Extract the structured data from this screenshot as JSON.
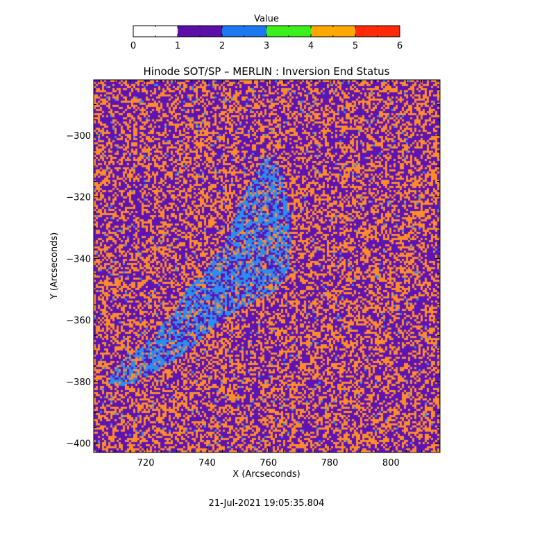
{
  "colorbar": {
    "title": "Value",
    "ticks": [
      "0",
      "1",
      "2",
      "3",
      "4",
      "5",
      "6"
    ],
    "range": [
      0,
      6
    ],
    "bins": [
      {
        "from": 0,
        "to": 1,
        "color": "#ffffff"
      },
      {
        "from": 1,
        "to": 2,
        "color": "#5b0ea8"
      },
      {
        "from": 2,
        "to": 3,
        "color": "#1c78f0"
      },
      {
        "from": 3,
        "to": 4,
        "color": "#3cf01c"
      },
      {
        "from": 4,
        "to": 5,
        "color": "#ffa800"
      },
      {
        "from": 5,
        "to": 6,
        "color": "#ff2a08"
      }
    ]
  },
  "chart_data": {
    "type": "heatmap",
    "title": "Hinode SOT/SP – MERLIN : Inversion End Status",
    "xlabel": "X (Arcseconds)",
    "ylabel": "Y (Arcseconds)",
    "xlim": [
      703,
      816
    ],
    "ylim": [
      -403,
      -282
    ],
    "x_ticks": [
      720,
      740,
      760,
      780,
      800
    ],
    "y_ticks": [
      -300,
      -320,
      -340,
      -360,
      -380,
      -400
    ],
    "values_present": [
      {
        "value": 1,
        "label": "1–2",
        "color": "#5e14b4",
        "share": "majority background"
      },
      {
        "value": 4,
        "label": "4–5",
        "color": "#ff8c28",
        "share": "scattered across field"
      },
      {
        "value": 2,
        "label": "2–3",
        "color": "#2c8cf0",
        "share": "clustered in central diagonal region"
      }
    ],
    "blue_region_outline": [
      [
        706,
        -380
      ],
      [
        712,
        -373
      ],
      [
        720,
        -367
      ],
      [
        728,
        -358
      ],
      [
        733,
        -350
      ],
      [
        740,
        -343
      ],
      [
        746,
        -333
      ],
      [
        750,
        -322
      ],
      [
        755,
        -313
      ],
      [
        759,
        -305
      ],
      [
        764,
        -312
      ],
      [
        766,
        -322
      ],
      [
        767,
        -334
      ],
      [
        766,
        -345
      ],
      [
        760,
        -352
      ],
      [
        752,
        -355
      ],
      [
        744,
        -360
      ],
      [
        738,
        -366
      ],
      [
        730,
        -372
      ],
      [
        720,
        -378
      ],
      [
        712,
        -381
      ]
    ]
  },
  "footer": {
    "timestamp": "21-Jul-2021 19:05:35.804"
  }
}
